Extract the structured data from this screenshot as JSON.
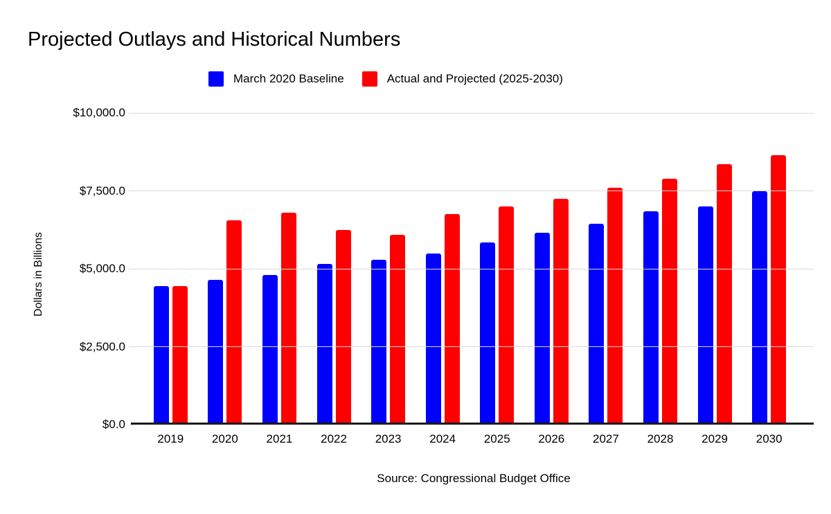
{
  "chart_data": {
    "type": "bar",
    "title": "Projected Outlays and Historical Numbers",
    "categories": [
      "2019",
      "2020",
      "2021",
      "2022",
      "2023",
      "2024",
      "2025",
      "2026",
      "2027",
      "2028",
      "2029",
      "2030"
    ],
    "series": [
      {
        "name": "March 2020 Baseline",
        "color": "#0000ff",
        "values": [
          4450,
          4650,
          4800,
          5150,
          5300,
          5500,
          5850,
          6150,
          6450,
          6850,
          7000,
          7500
        ]
      },
      {
        "name": "Actual and Projected (2025-2030)",
        "color": "#ff0000",
        "values": [
          4450,
          6550,
          6800,
          6250,
          6100,
          6750,
          7000,
          7250,
          7600,
          7900,
          8350,
          8650
        ]
      }
    ],
    "xlabel": "",
    "ylabel": "Dollars in Billions",
    "ylim": [
      0,
      10000
    ],
    "ytick_values": [
      0,
      2500,
      5000,
      7500,
      10000
    ],
    "ytick_labels": [
      "$0.0",
      "$2,500.0",
      "$5,000.0",
      "$7,500.0",
      "$10,000.0"
    ],
    "grid": true,
    "legend_position": "top",
    "source": "Source: Congressional Budget Office",
    "colors": {
      "grid": "#d9d9d9",
      "axis": "#1a1a1a",
      "text": "#000000"
    }
  }
}
